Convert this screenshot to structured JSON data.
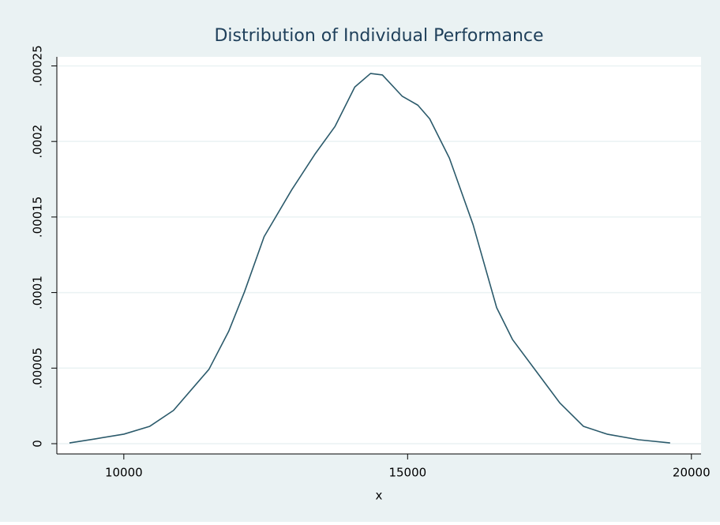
{
  "chart_data": {
    "type": "line",
    "title": "Distribution of Individual Performance",
    "x_label": "x",
    "x": [
      9042,
      9486,
      10000,
      10458,
      10875,
      11500,
      11847,
      12125,
      12472,
      12958,
      13375,
      13722,
      14069,
      14347,
      14556,
      14903,
      15181,
      15389,
      15736,
      16153,
      16569,
      16847,
      17264,
      17681,
      18097,
      18514,
      19069,
      19625
    ],
    "series": [
      {
        "color": "#2b5a6b",
        "values": [
          5e-07,
          3.1e-06,
          6.3e-06,
          1.15e-05,
          2.2e-05,
          4.92e-05,
          7.43e-05,
          0.0001004,
          0.000137,
          0.000168,
          0.000192,
          0.00021,
          0.000236,
          0.000245,
          0.000244,
          0.00023,
          0.000224,
          0.000215,
          0.000189,
          0.000145,
          9e-05,
          6.9e-05,
          4.8e-05,
          2.7e-05,
          1.15e-05,
          6.3e-06,
          2.6e-06,
          5e-07
        ]
      }
    ],
    "xlim": [
      8820,
      20170
    ],
    "xticks": [
      10000,
      15000,
      20000
    ],
    "ylim": [
      -6.8e-06,
      0.000256
    ],
    "yticks": [
      0,
      {
        "value": 5e-05,
        "label": ".00005"
      },
      {
        "value": 0.0001,
        "label": ".0001"
      },
      {
        "value": 0.00015,
        "label": ".00015"
      },
      {
        "value": 0.0002,
        "label": ".0002"
      },
      {
        "value": 0.00025,
        "label": ".00025"
      }
    ],
    "grid": true
  }
}
